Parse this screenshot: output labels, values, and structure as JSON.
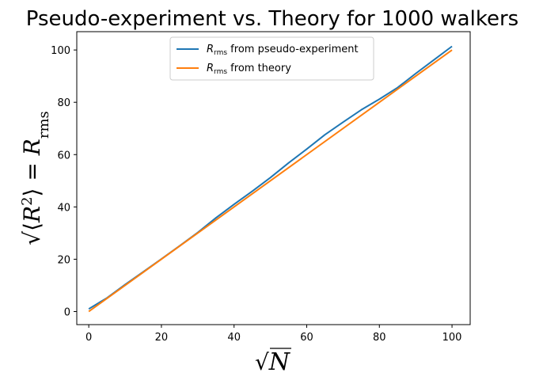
{
  "chart_data": {
    "type": "line",
    "title": "Pseudo-experiment vs. Theory for 1000 walkers",
    "xlabel": "√N",
    "ylabel": "√⟨R²⟩ = R_rms",
    "xlim": [
      -3.3,
      105
    ],
    "ylim": [
      -5,
      107
    ],
    "xticks": [
      0,
      20,
      40,
      60,
      80,
      100
    ],
    "yticks": [
      0,
      20,
      40,
      60,
      80,
      100
    ],
    "xtick_labels": [
      "0",
      "20",
      "40",
      "60",
      "80",
      "100"
    ],
    "ytick_labels": [
      "0",
      "20",
      "40",
      "60",
      "80",
      "100"
    ],
    "legend_position": "upper-center",
    "grid": false,
    "series": [
      {
        "name": "R_rms from pseudo-experiment",
        "legend_main": "R",
        "legend_sub": "rms",
        "legend_rest": " from pseudo-experiment",
        "color": "#1f77b4",
        "x": [
          0,
          5,
          10,
          15,
          20,
          25,
          30,
          35,
          40,
          45,
          50,
          55,
          60,
          65,
          70,
          75,
          80,
          85,
          90,
          95,
          100
        ],
        "y": [
          1.0,
          5.2,
          10.3,
          15.2,
          20.1,
          25.1,
          30.2,
          35.8,
          41.0,
          46.0,
          51.2,
          56.8,
          62.1,
          67.6,
          72.4,
          77.1,
          81.2,
          85.6,
          91.0,
          96.2,
          101.4
        ]
      },
      {
        "name": "R_rms from theory",
        "legend_main": "R",
        "legend_sub": "rms",
        "legend_rest": " from theory",
        "color": "#ff7f0e",
        "x": [
          0,
          100
        ],
        "y": [
          0,
          100
        ]
      }
    ]
  }
}
